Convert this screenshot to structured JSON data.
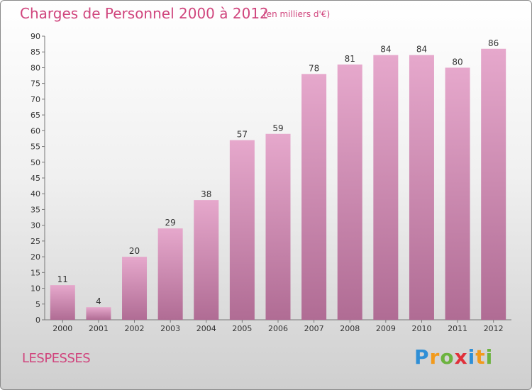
{
  "title": "Charges de Personnel 2000 à 2012",
  "subtitle": "(en milliers d'€)",
  "commune": "LESPESSES",
  "logo": {
    "letters": [
      {
        "ch": "P",
        "color": "#2f8fd6"
      },
      {
        "ch": "r",
        "color": "#f29a1c"
      },
      {
        "ch": "o",
        "color": "#6cb33f"
      },
      {
        "ch": "x",
        "color": "#e0303a"
      },
      {
        "ch": "i",
        "color": "#2f8fd6"
      },
      {
        "ch": "t",
        "color": "#f29a1c"
      },
      {
        "ch": "i",
        "color": "#6cb33f"
      }
    ]
  },
  "colors": {
    "bar_top": "#e6a8cc",
    "bar_bottom": "#b06c94",
    "accent": "#d0457d"
  },
  "chart_data": {
    "type": "bar",
    "title": "Charges de Personnel 2000 à 2012",
    "subtitle": "(en milliers d'€)",
    "categories": [
      "2000",
      "2001",
      "2002",
      "2003",
      "2004",
      "2005",
      "2006",
      "2007",
      "2008",
      "2009",
      "2010",
      "2011",
      "2012"
    ],
    "values": [
      11,
      4,
      20,
      29,
      38,
      57,
      59,
      78,
      81,
      84,
      84,
      80,
      86
    ],
    "ylim": [
      0,
      90
    ],
    "yticks": [
      0,
      5,
      10,
      15,
      20,
      25,
      30,
      35,
      40,
      45,
      50,
      55,
      60,
      65,
      70,
      75,
      80,
      85,
      90
    ],
    "grid": false,
    "legend": "none"
  }
}
